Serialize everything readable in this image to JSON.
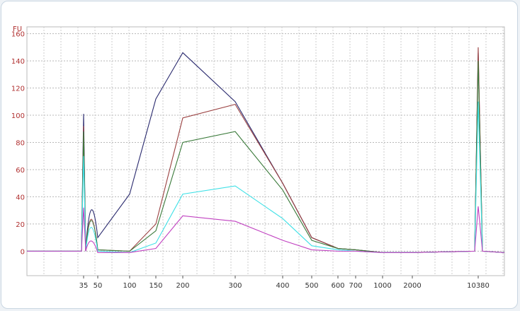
{
  "chart_data": {
    "type": "line",
    "ylabel": "FU",
    "ylim": [
      -18,
      165
    ],
    "yticks": [
      0,
      20,
      40,
      60,
      80,
      100,
      120,
      140,
      160
    ],
    "xticks": [
      "35",
      "50",
      "100",
      "150",
      "200",
      "300",
      "400",
      "500",
      "600",
      "700",
      "1000",
      "2000",
      "10380"
    ],
    "grid": true,
    "x": [
      "35",
      "50",
      "100",
      "150",
      "200",
      "300",
      "400",
      "500",
      "600",
      "700",
      "1000",
      "2000",
      "10380"
    ],
    "series": [
      {
        "color": "#2a2a6e",
        "values": [
          101,
          10,
          42,
          112,
          146,
          110,
          50,
          10,
          2,
          1,
          -1,
          -1,
          146
        ]
      },
      {
        "color": "#9a4040",
        "values": [
          92,
          1,
          0,
          20,
          98,
          108,
          50,
          10,
          2,
          1,
          -1,
          -1,
          150
        ]
      },
      {
        "color": "#3a7a3a",
        "values": [
          88,
          1,
          0,
          15,
          80,
          88,
          45,
          8,
          2,
          1,
          -1,
          -1,
          140
        ]
      },
      {
        "color": "#3ee0e6",
        "values": [
          70,
          0,
          -1,
          6,
          42,
          48,
          24,
          4,
          1,
          0,
          -1,
          -1,
          110
        ]
      },
      {
        "color": "#c040c0",
        "values": [
          32,
          -1,
          -1,
          2,
          26,
          22,
          8,
          1,
          0,
          0,
          -1,
          -1,
          33
        ]
      }
    ]
  }
}
